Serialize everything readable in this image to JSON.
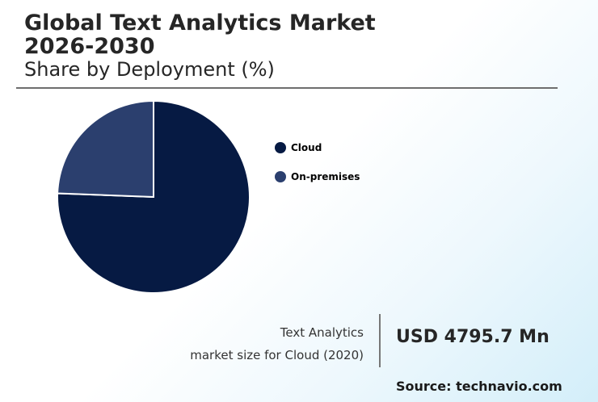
{
  "header": {
    "title": "Global Text Analytics Market 2026-2030",
    "subtitle": "Share by Deployment (%)"
  },
  "chart_data": {
    "type": "pie",
    "title": "Global Text Analytics Market 2026-2030",
    "subtitle": "Share by Deployment (%)",
    "categories": [
      "Cloud",
      "On-premises"
    ],
    "values": [
      75.6,
      24.4
    ],
    "colors": [
      "#061a43",
      "#2b3f6e"
    ],
    "legend_placement": "right"
  },
  "stat": {
    "label_line1": "Text Analytics",
    "label_line2": "market size for Cloud (2020)",
    "value": "USD 4795.7 Mn"
  },
  "source": "Source: technavio.com"
}
